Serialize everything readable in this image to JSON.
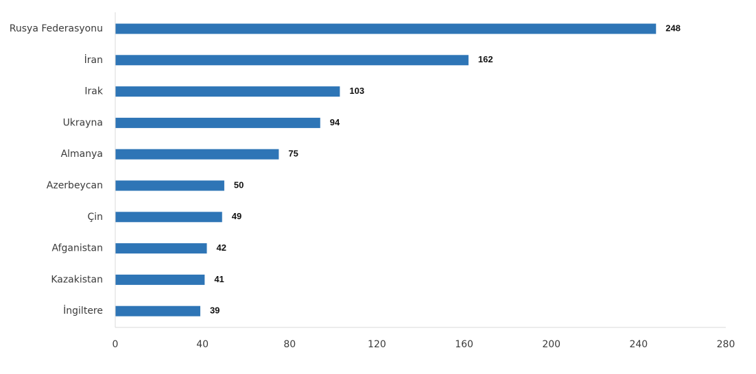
{
  "chart_data": {
    "type": "bar",
    "orientation": "horizontal",
    "categories": [
      "Rusya Federasyonu",
      "İran",
      "Irak",
      "Ukrayna",
      "Almanya",
      "Azerbeycan",
      "Çin",
      "Afganistan",
      "Kazakistan",
      "İngiltere"
    ],
    "values": [
      248,
      162,
      103,
      94,
      75,
      50,
      49,
      42,
      41,
      39
    ],
    "title": "",
    "xlabel": "",
    "ylabel": "",
    "xlim": [
      0,
      280
    ],
    "x_ticks": [
      0,
      40,
      80,
      120,
      160,
      200,
      240,
      280
    ],
    "grid": false,
    "legend": "none",
    "bar_color": "#2e75b6"
  }
}
